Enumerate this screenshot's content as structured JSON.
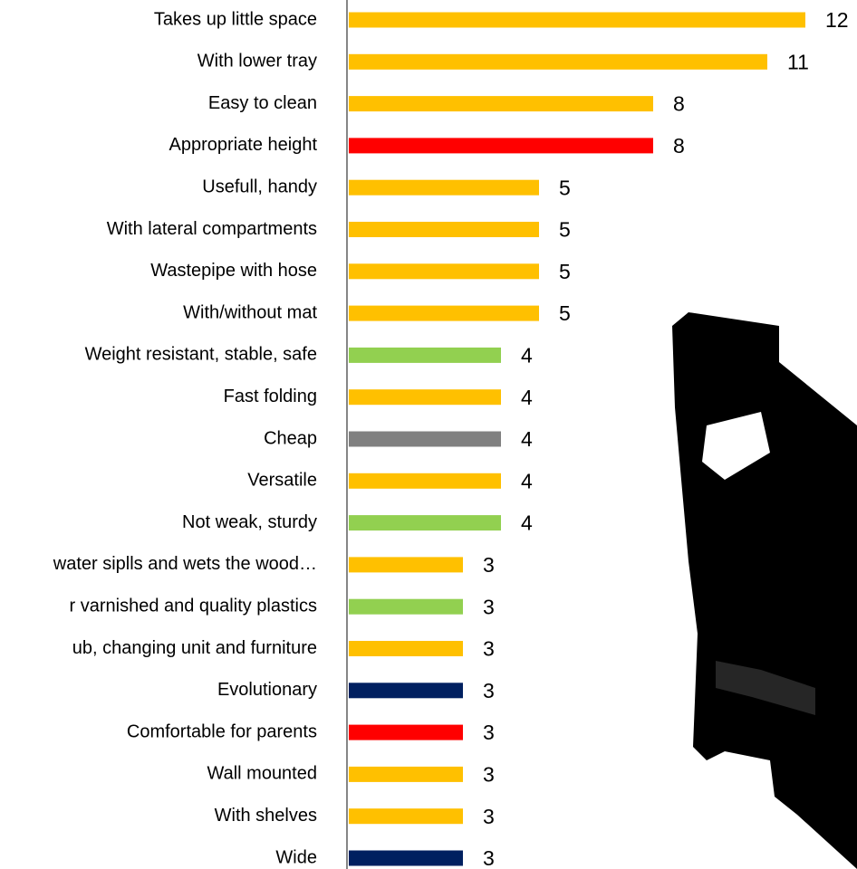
{
  "chart_data": {
    "type": "bar",
    "orientation": "horizontal",
    "categories": [
      "Takes up little space",
      "With lower tray",
      "Easy to clean",
      "Appropriate height",
      "Usefull, handy",
      "With lateral compartments",
      "Wastepipe with hose",
      "With/without mat",
      "Weight resistant, stable, safe",
      "Fast folding",
      "Cheap",
      "Versatile",
      "Not weak, sturdy",
      "water siplls and wets the wood…",
      "r varnished and quality plastics",
      "ub, changing unit and furniture",
      "Evolutionary",
      "Comfortable for parents",
      "Wall mounted",
      "With shelves",
      "Wide"
    ],
    "values": [
      12,
      11,
      8,
      8,
      5,
      5,
      5,
      5,
      4,
      4,
      4,
      4,
      4,
      3,
      3,
      3,
      3,
      3,
      3,
      3,
      3
    ],
    "colors": [
      "#FFC000",
      "#FFC000",
      "#FFC000",
      "#FF0000",
      "#FFC000",
      "#FFC000",
      "#FFC000",
      "#FFC000",
      "#92D050",
      "#FFC000",
      "#808080",
      "#FFC000",
      "#92D050",
      "#FFC000",
      "#92D050",
      "#FFC000",
      "#002060",
      "#FF0000",
      "#FFC000",
      "#FFC000",
      "#002060"
    ]
  }
}
